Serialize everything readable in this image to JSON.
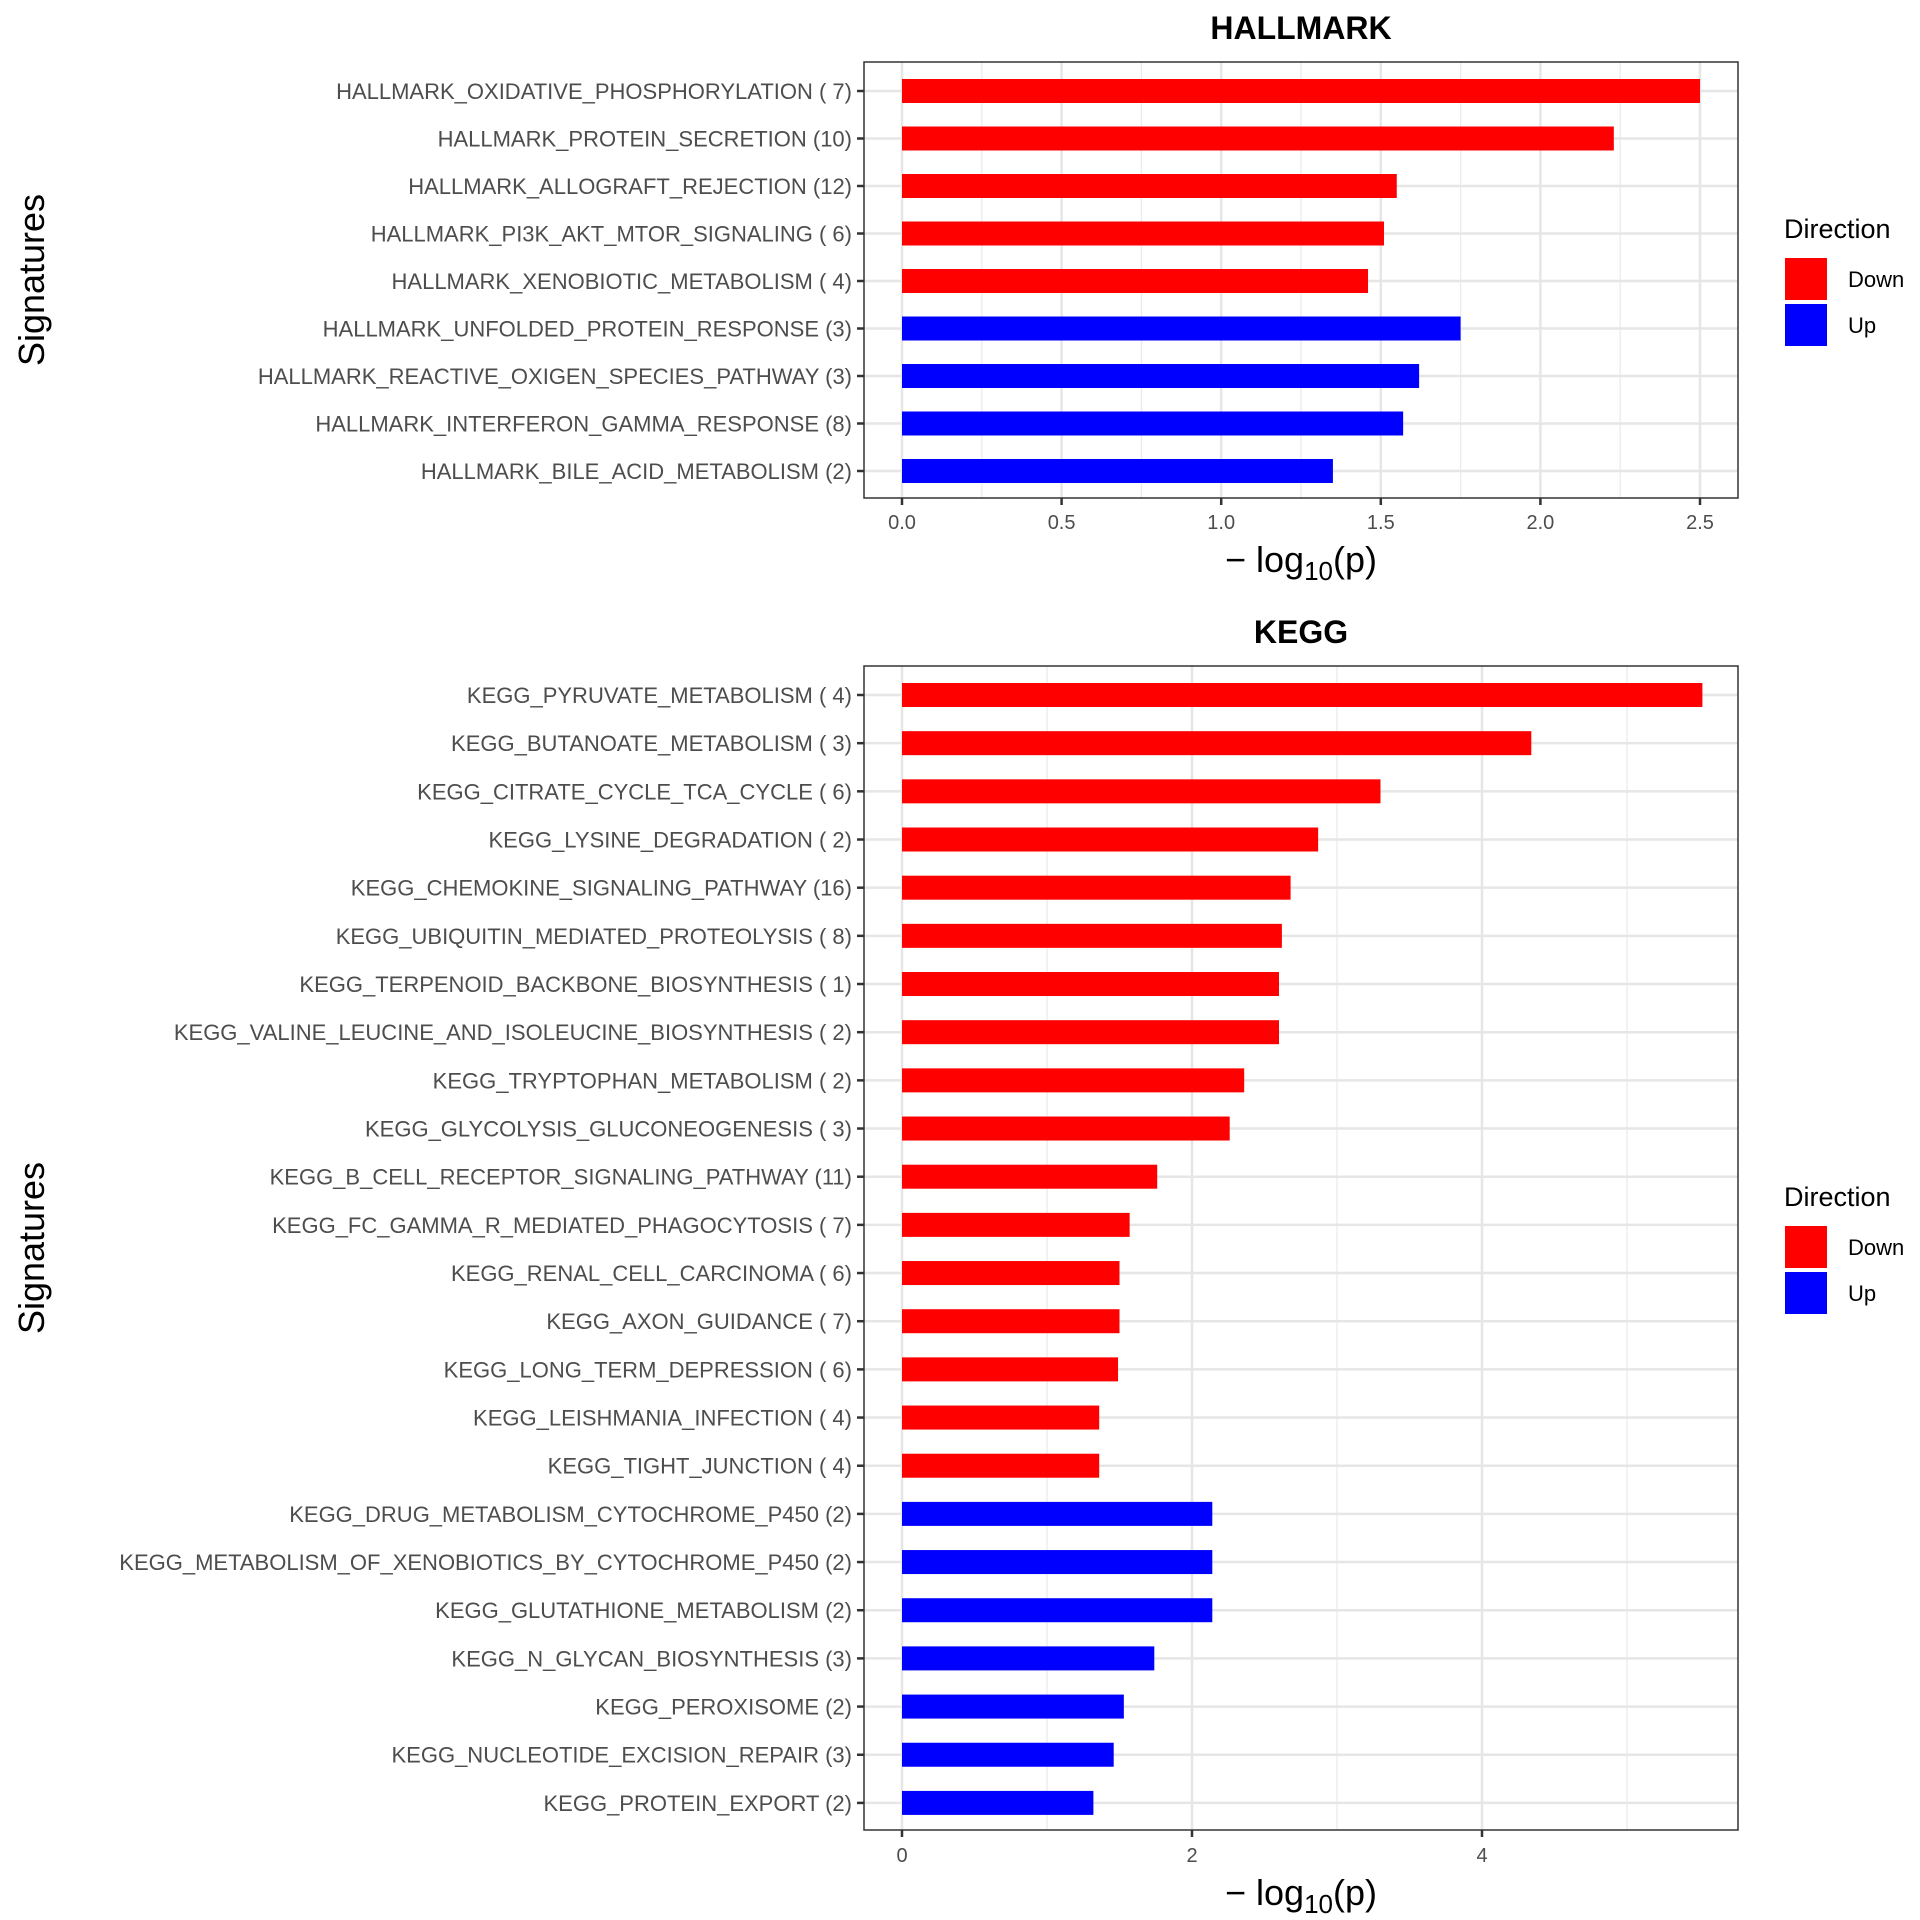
{
  "chart_data": [
    {
      "type": "bar",
      "orientation": "horizontal",
      "title": "HALLMARK",
      "xlabel": "-log10(p)",
      "ylabel": "Signatures",
      "xlim": [
        0,
        2.62
      ],
      "xticks": [
        0.0,
        0.5,
        1.0,
        1.5,
        2.0,
        2.5
      ],
      "xtick_labels": [
        "0.0",
        "0.5",
        "1.0",
        "1.5",
        "2.0",
        "2.5"
      ],
      "grid": true,
      "legend": {
        "title": "Direction",
        "placement": "right",
        "entries": [
          {
            "label": "Down",
            "color": "#ff0000"
          },
          {
            "label": "Up",
            "color": "#0000ff"
          }
        ]
      },
      "categories": [
        "HALLMARK_OXIDATIVE_PHOSPHORYLATION ( 7)",
        "HALLMARK_PROTEIN_SECRETION (10)",
        "HALLMARK_ALLOGRAFT_REJECTION (12)",
        "HALLMARK_PI3K_AKT_MTOR_SIGNALING ( 6)",
        "HALLMARK_XENOBIOTIC_METABOLISM ( 4)",
        "HALLMARK_UNFOLDED_PROTEIN_RESPONSE (3)",
        "HALLMARK_REACTIVE_OXIGEN_SPECIES_PATHWAY (3)",
        "HALLMARK_INTERFERON_GAMMA_RESPONSE (8)",
        "HALLMARK_BILE_ACID_METABOLISM (2)"
      ],
      "values": [
        2.5,
        2.23,
        1.55,
        1.51,
        1.46,
        1.75,
        1.62,
        1.57,
        1.35
      ],
      "direction": [
        "Down",
        "Down",
        "Down",
        "Down",
        "Down",
        "Up",
        "Up",
        "Up",
        "Up"
      ]
    },
    {
      "type": "bar",
      "orientation": "horizontal",
      "title": "KEGG",
      "xlabel": "-log10(p)",
      "ylabel": "Signatures",
      "xlim": [
        0,
        5.8
      ],
      "xticks": [
        0,
        2,
        4
      ],
      "xtick_labels": [
        "0",
        "2",
        "4"
      ],
      "minor_gridlines": [
        1,
        3,
        5
      ],
      "grid": true,
      "legend": {
        "title": "Direction",
        "placement": "right",
        "entries": [
          {
            "label": "Down",
            "color": "#ff0000"
          },
          {
            "label": "Up",
            "color": "#0000ff"
          }
        ]
      },
      "categories": [
        "KEGG_PYRUVATE_METABOLISM ( 4)",
        "KEGG_BUTANOATE_METABOLISM ( 3)",
        "KEGG_CITRATE_CYCLE_TCA_CYCLE ( 6)",
        "KEGG_LYSINE_DEGRADATION ( 2)",
        "KEGG_CHEMOKINE_SIGNALING_PATHWAY (16)",
        "KEGG_UBIQUITIN_MEDIATED_PROTEOLYSIS ( 8)",
        "KEGG_TERPENOID_BACKBONE_BIOSYNTHESIS ( 1)",
        "KEGG_VALINE_LEUCINE_AND_ISOLEUCINE_BIOSYNTHESIS ( 2)",
        "KEGG_TRYPTOPHAN_METABOLISM ( 2)",
        "KEGG_GLYCOLYSIS_GLUCONEOGENESIS ( 3)",
        "KEGG_B_CELL_RECEPTOR_SIGNALING_PATHWAY (11)",
        "KEGG_FC_GAMMA_R_MEDIATED_PHAGOCYTOSIS ( 7)",
        "KEGG_RENAL_CELL_CARCINOMA ( 6)",
        "KEGG_AXON_GUIDANCE ( 7)",
        "KEGG_LONG_TERM_DEPRESSION ( 6)",
        "KEGG_LEISHMANIA_INFECTION ( 4)",
        "KEGG_TIGHT_JUNCTION ( 4)",
        "KEGG_DRUG_METABOLISM_CYTOCHROME_P450 (2)",
        "KEGG_METABOLISM_OF_XENOBIOTICS_BY_CYTOCHROME_P450 (2)",
        "KEGG_GLUTATHIONE_METABOLISM (2)",
        "KEGG_N_GLYCAN_BIOSYNTHESIS (3)",
        "KEGG_PEROXISOME (2)",
        "KEGG_NUCLEOTIDE_EXCISION_REPAIR (3)",
        "KEGG_PROTEIN_EXPORT (2)"
      ],
      "values": [
        5.52,
        4.34,
        3.3,
        2.87,
        2.68,
        2.62,
        2.6,
        2.6,
        2.36,
        2.26,
        1.76,
        1.57,
        1.5,
        1.5,
        1.49,
        1.36,
        1.36,
        2.14,
        2.14,
        2.14,
        1.74,
        1.53,
        1.46,
        1.32
      ],
      "direction": [
        "Down",
        "Down",
        "Down",
        "Down",
        "Down",
        "Down",
        "Down",
        "Down",
        "Down",
        "Down",
        "Down",
        "Down",
        "Down",
        "Down",
        "Down",
        "Down",
        "Down",
        "Up",
        "Up",
        "Up",
        "Up",
        "Up",
        "Up",
        "Up"
      ]
    }
  ],
  "axis_title_parts": {
    "minus": "−",
    "log": "log",
    "sub": "10",
    "arg": "(p)"
  },
  "colors": {
    "Down": "#ff0000",
    "Up": "#0000ff"
  }
}
